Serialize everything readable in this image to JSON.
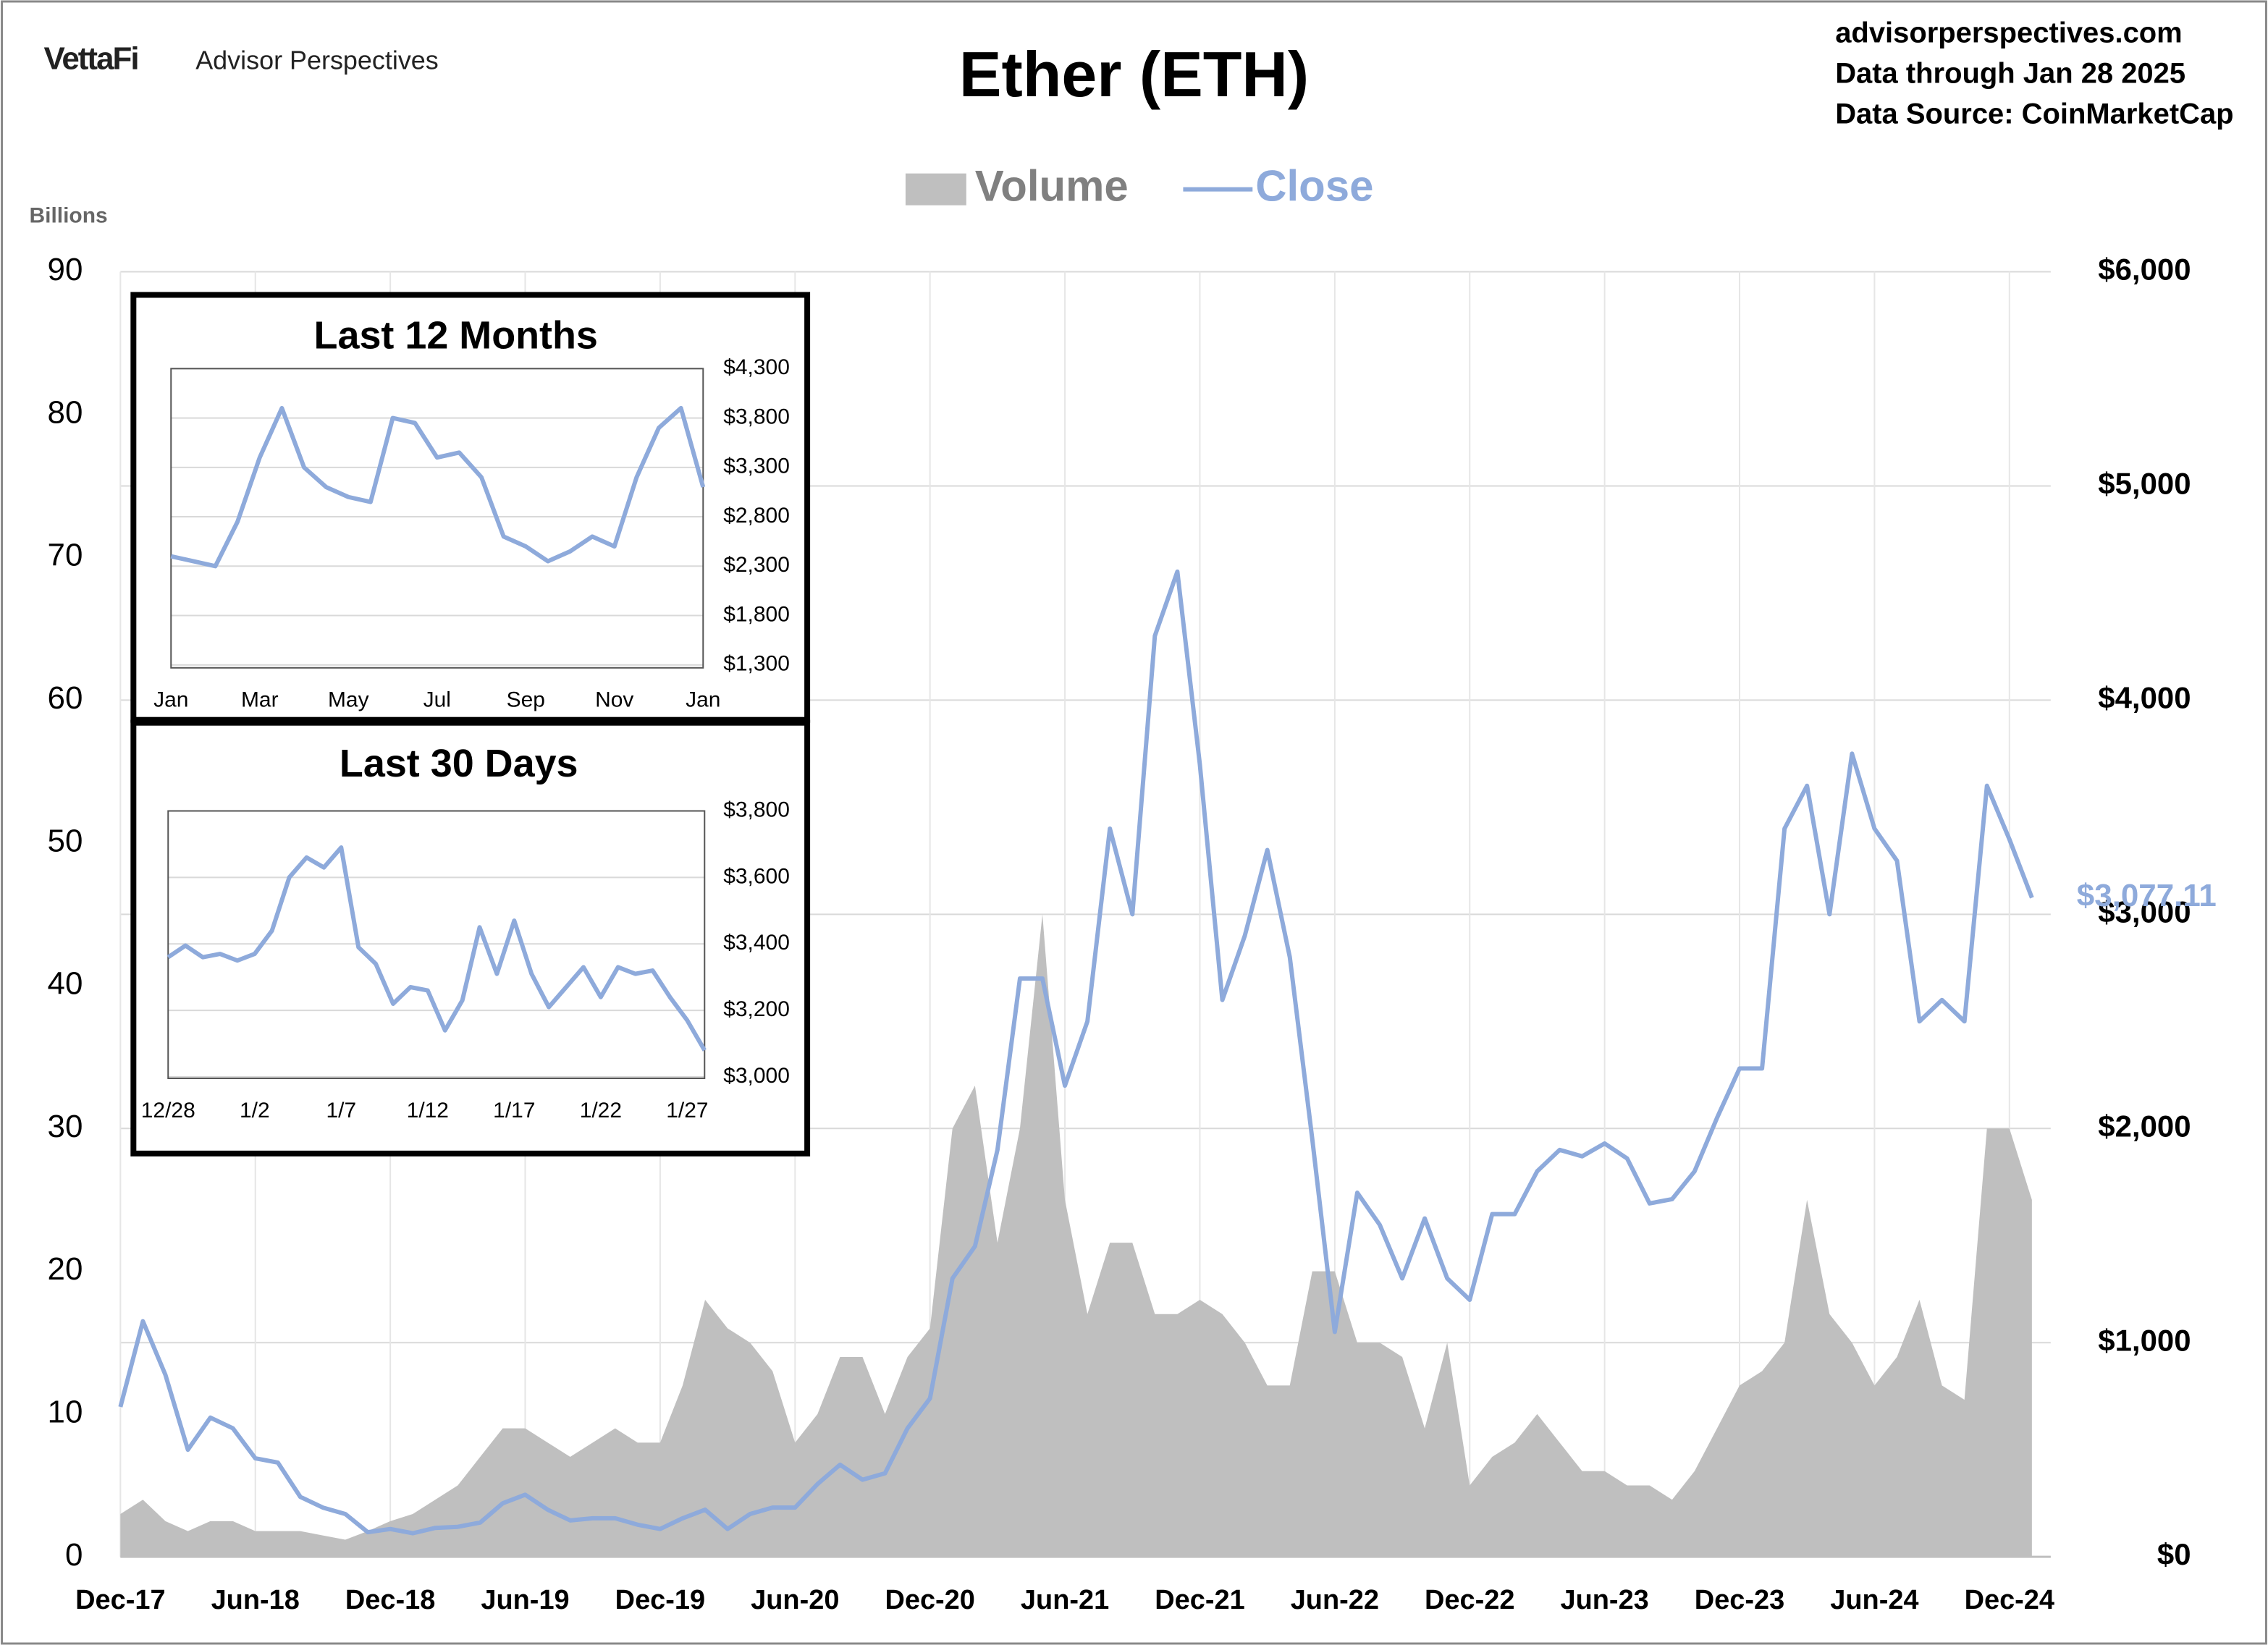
{
  "header": {
    "logo": "VettaFi",
    "brand": "Advisor Perspectives",
    "source_lines": [
      "advisorperspectives.com",
      "Data through Jan 28 2025",
      "Data Source: CoinMarketCap"
    ]
  },
  "chart_data": [
    {
      "type": "combo",
      "title": "Ether (ETH)",
      "y_label": "Billions",
      "x": [
        "Dec-17",
        "Jan-18",
        "Feb-18",
        "Mar-18",
        "Apr-18",
        "May-18",
        "Jun-18",
        "Jul-18",
        "Aug-18",
        "Sep-18",
        "Oct-18",
        "Nov-18",
        "Dec-18",
        "Jan-19",
        "Feb-19",
        "Mar-19",
        "Apr-19",
        "May-19",
        "Jun-19",
        "Jul-19",
        "Aug-19",
        "Sep-19",
        "Oct-19",
        "Nov-19",
        "Dec-19",
        "Jan-20",
        "Feb-20",
        "Mar-20",
        "Apr-20",
        "May-20",
        "Jun-20",
        "Jul-20",
        "Aug-20",
        "Sep-20",
        "Oct-20",
        "Nov-20",
        "Dec-20",
        "Jan-21",
        "Feb-21",
        "Mar-21",
        "Apr-21",
        "May-21",
        "Jun-21",
        "Jul-21",
        "Aug-21",
        "Sep-21",
        "Oct-21",
        "Nov-21",
        "Dec-21",
        "Jan-22",
        "Feb-22",
        "Mar-22",
        "Apr-22",
        "May-22",
        "Jun-22",
        "Jul-22",
        "Aug-22",
        "Sep-22",
        "Oct-22",
        "Nov-22",
        "Dec-22",
        "Jan-23",
        "Feb-23",
        "Mar-23",
        "Apr-23",
        "May-23",
        "Jun-23",
        "Jul-23",
        "Aug-23",
        "Sep-23",
        "Oct-23",
        "Nov-23",
        "Dec-23",
        "Jan-24",
        "Feb-24",
        "Mar-24",
        "Apr-24",
        "May-24",
        "Jun-24",
        "Jul-24",
        "Aug-24",
        "Sep-24",
        "Oct-24",
        "Nov-24",
        "Dec-24",
        "Jan-25"
      ],
      "xticks": [
        "Dec-17",
        "Jun-18",
        "Dec-18",
        "Jun-19",
        "Dec-19",
        "Jun-20",
        "Dec-20",
        "Jun-21",
        "Dec-21",
        "Jun-22",
        "Dec-22",
        "Jun-23",
        "Dec-23",
        "Jun-24",
        "Dec-24"
      ],
      "ylim": [
        0,
        90
      ],
      "yticks": [
        0,
        10,
        20,
        30,
        40,
        50,
        60,
        70,
        80,
        90
      ],
      "y2lim": [
        0,
        6000
      ],
      "y2ticks": [
        {
          "value": 0,
          "label": "$0"
        },
        {
          "value": 1000,
          "label": "$1,000"
        },
        {
          "value": 2000,
          "label": "$2,000"
        },
        {
          "value": 3000,
          "label": "$3,000"
        },
        {
          "value": 4000,
          "label": "$4,000"
        },
        {
          "value": 5000,
          "label": "$5,000"
        },
        {
          "value": 6000,
          "label": "$6,000"
        }
      ],
      "grid": true,
      "series": [
        {
          "name": "Volume",
          "type": "area",
          "color": "#bfbfbf",
          "values": [
            3,
            4,
            2.5,
            1.8,
            2.5,
            2.5,
            1.8,
            1.8,
            1.8,
            1.5,
            1.2,
            1.8,
            2.5,
            3,
            4,
            5,
            7,
            9,
            9,
            8,
            7,
            8,
            9,
            8,
            8,
            12,
            18,
            16,
            15,
            13,
            8,
            10,
            14,
            14,
            10,
            14,
            16,
            30,
            33,
            22,
            30,
            45,
            25,
            17,
            22,
            22,
            17,
            17,
            18,
            17,
            15,
            12,
            12,
            20,
            20,
            15,
            15,
            14,
            9,
            15,
            5,
            7,
            8,
            10,
            8,
            6,
            6,
            5,
            5,
            4,
            6,
            9,
            12,
            13,
            15,
            25,
            17,
            15,
            12,
            14,
            18,
            12,
            11,
            30,
            30,
            25
          ]
        },
        {
          "name": "Close",
          "type": "line",
          "axis": "y2",
          "color": "#8eaadb",
          "end_label": "$3,077.11",
          "values": [
            700,
            1100,
            850,
            500,
            650,
            600,
            460,
            440,
            280,
            230,
            200,
            115,
            130,
            110,
            135,
            140,
            160,
            250,
            290,
            220,
            170,
            180,
            180,
            150,
            130,
            180,
            220,
            130,
            200,
            230,
            230,
            340,
            430,
            360,
            390,
            600,
            740,
            1300,
            1450,
            1900,
            2700,
            2700,
            2200,
            2500,
            3400,
            3000,
            4300,
            4600,
            3700,
            2600,
            2900,
            3300,
            2800,
            1950,
            1050,
            1700,
            1550,
            1300,
            1580,
            1300,
            1200,
            1600,
            1600,
            1800,
            1900,
            1870,
            1930,
            1860,
            1650,
            1670,
            1800,
            2050,
            2280,
            2280,
            3400,
            3600,
            3000,
            3750,
            3400,
            3250,
            2500,
            2600,
            2500,
            3600,
            3350,
            3077.11
          ]
        }
      ]
    },
    {
      "type": "line",
      "title": "Last 12 Months",
      "color": "#8eaadb",
      "grid": true,
      "categories": [
        "Jan",
        null,
        null,
        null,
        "Mar",
        null,
        null,
        null,
        "May",
        null,
        null,
        null,
        "Jul",
        null,
        null,
        null,
        "Sep",
        null,
        null,
        null,
        "Nov",
        null,
        null,
        null,
        "Jan"
      ],
      "values": [
        2400,
        2350,
        2300,
        2750,
        3400,
        3900,
        3300,
        3100,
        3000,
        2950,
        3800,
        3750,
        3400,
        3450,
        3200,
        2600,
        2500,
        2350,
        2450,
        2600,
        2500,
        3200,
        3700,
        3900,
        3100
      ],
      "ylim": [
        1300,
        4300
      ],
      "yticks": [
        {
          "value": 1300,
          "label": "$1,300"
        },
        {
          "value": 1800,
          "label": "$1,800"
        },
        {
          "value": 2300,
          "label": "$2,300"
        },
        {
          "value": 2800,
          "label": "$2,800"
        },
        {
          "value": 3300,
          "label": "$3,300"
        },
        {
          "value": 3800,
          "label": "$3,800"
        },
        {
          "value": 4300,
          "label": "$4,300"
        }
      ]
    },
    {
      "type": "line",
      "title": "Last 30 Days",
      "color": "#8eaadb",
      "grid": true,
      "categories": [
        "12/28",
        null,
        null,
        null,
        null,
        "1/2",
        null,
        null,
        null,
        null,
        "1/7",
        null,
        null,
        null,
        null,
        "1/12",
        null,
        null,
        null,
        null,
        "1/17",
        null,
        null,
        null,
        null,
        "1/22",
        null,
        null,
        null,
        null,
        "1/27",
        null
      ],
      "values": [
        3360,
        3395,
        3360,
        3370,
        3350,
        3370,
        3440,
        3600,
        3660,
        3630,
        3690,
        3390,
        3340,
        3220,
        3270,
        3260,
        3140,
        3230,
        3450,
        3310,
        3470,
        3310,
        3210,
        3270,
        3330,
        3240,
        3330,
        3310,
        3320,
        3240,
        3170,
        3080
      ],
      "ylim": [
        3000,
        3800
      ],
      "yticks": [
        {
          "value": 3000,
          "label": "$3,000"
        },
        {
          "value": 3200,
          "label": "$3,200"
        },
        {
          "value": 3400,
          "label": "$3,400"
        },
        {
          "value": 3600,
          "label": "$3,600"
        },
        {
          "value": 3800,
          "label": "$3,800"
        }
      ]
    }
  ]
}
